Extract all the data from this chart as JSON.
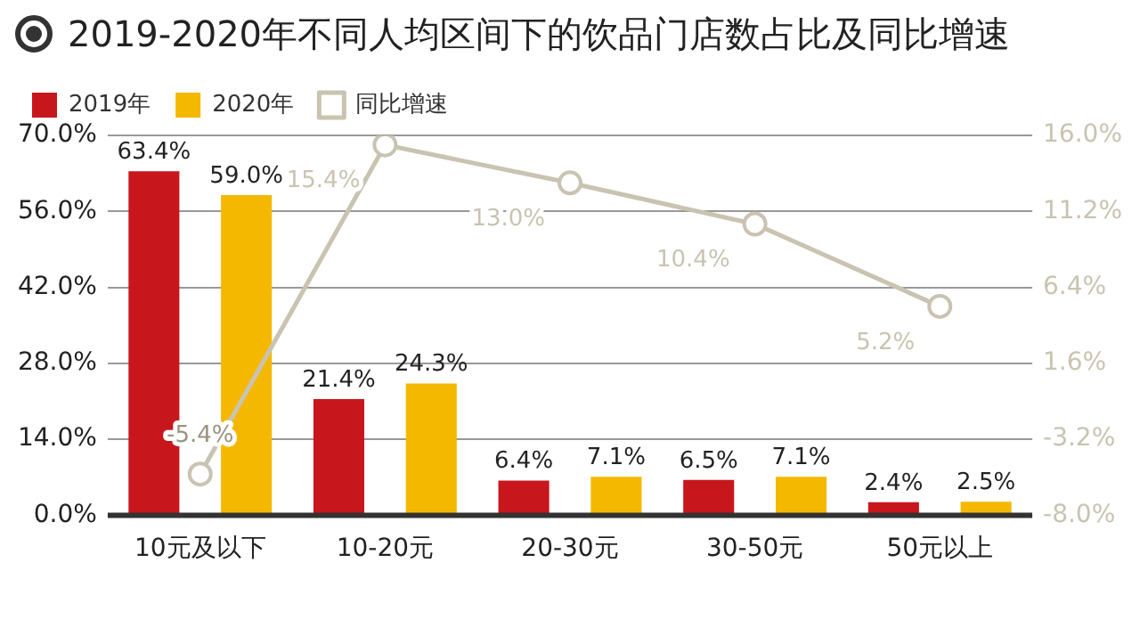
{
  "chart_data": {
    "type": "bar",
    "title": "2019-2020年不同人均区间下的饮品门店数占比及同比增速",
    "categories": [
      "10元及以下",
      "10-20元",
      "20-30元",
      "30-50元",
      "50元以上"
    ],
    "series": [
      {
        "name": "2019年",
        "color": "#c8161d",
        "values": [
          63.4,
          21.4,
          6.4,
          6.5,
          2.4
        ],
        "value_labels": [
          "63.4%",
          "21.4%",
          "6.4%",
          "6.5%",
          "2.4%"
        ]
      },
      {
        "name": "2020年",
        "color": "#f5b800",
        "values": [
          59.0,
          24.3,
          7.1,
          7.1,
          2.5
        ],
        "value_labels": [
          "59.0%",
          "24.3%",
          "7.1%",
          "7.1%",
          "2.5%"
        ]
      },
      {
        "name": "同比增速",
        "type": "line",
        "axis": "y2",
        "color": "#c9c3b1",
        "values": [
          -5.4,
          15.4,
          13.0,
          10.4,
          5.2
        ],
        "marker": "circle",
        "value_labels": [
          "-5.4%",
          "15.4%",
          "13.0%",
          "10.4%",
          "5.2%"
        ]
      }
    ],
    "ylim": [
      0,
      70
    ],
    "yticks": [
      {
        "value": 0,
        "label": "0.0%"
      },
      {
        "value": 14,
        "label": "14.0%"
      },
      {
        "value": 28,
        "label": "28.0%"
      },
      {
        "value": 42,
        "label": "42.0%"
      },
      {
        "value": 56,
        "label": "56.0%"
      },
      {
        "value": 70,
        "label": "70.0%"
      }
    ],
    "y2lim": [
      -8,
      16
    ],
    "y2ticks": [
      {
        "value": -8,
        "label": "-8.0%"
      },
      {
        "value": -3.2,
        "label": "-3.2%"
      },
      {
        "value": 1.6,
        "label": "1.6%"
      },
      {
        "value": 6.4,
        "label": "6.4%"
      },
      {
        "value": 11.2,
        "label": "11.2%"
      },
      {
        "value": 16,
        "label": "16.0%"
      }
    ],
    "grid": "y",
    "legend": "top left"
  }
}
